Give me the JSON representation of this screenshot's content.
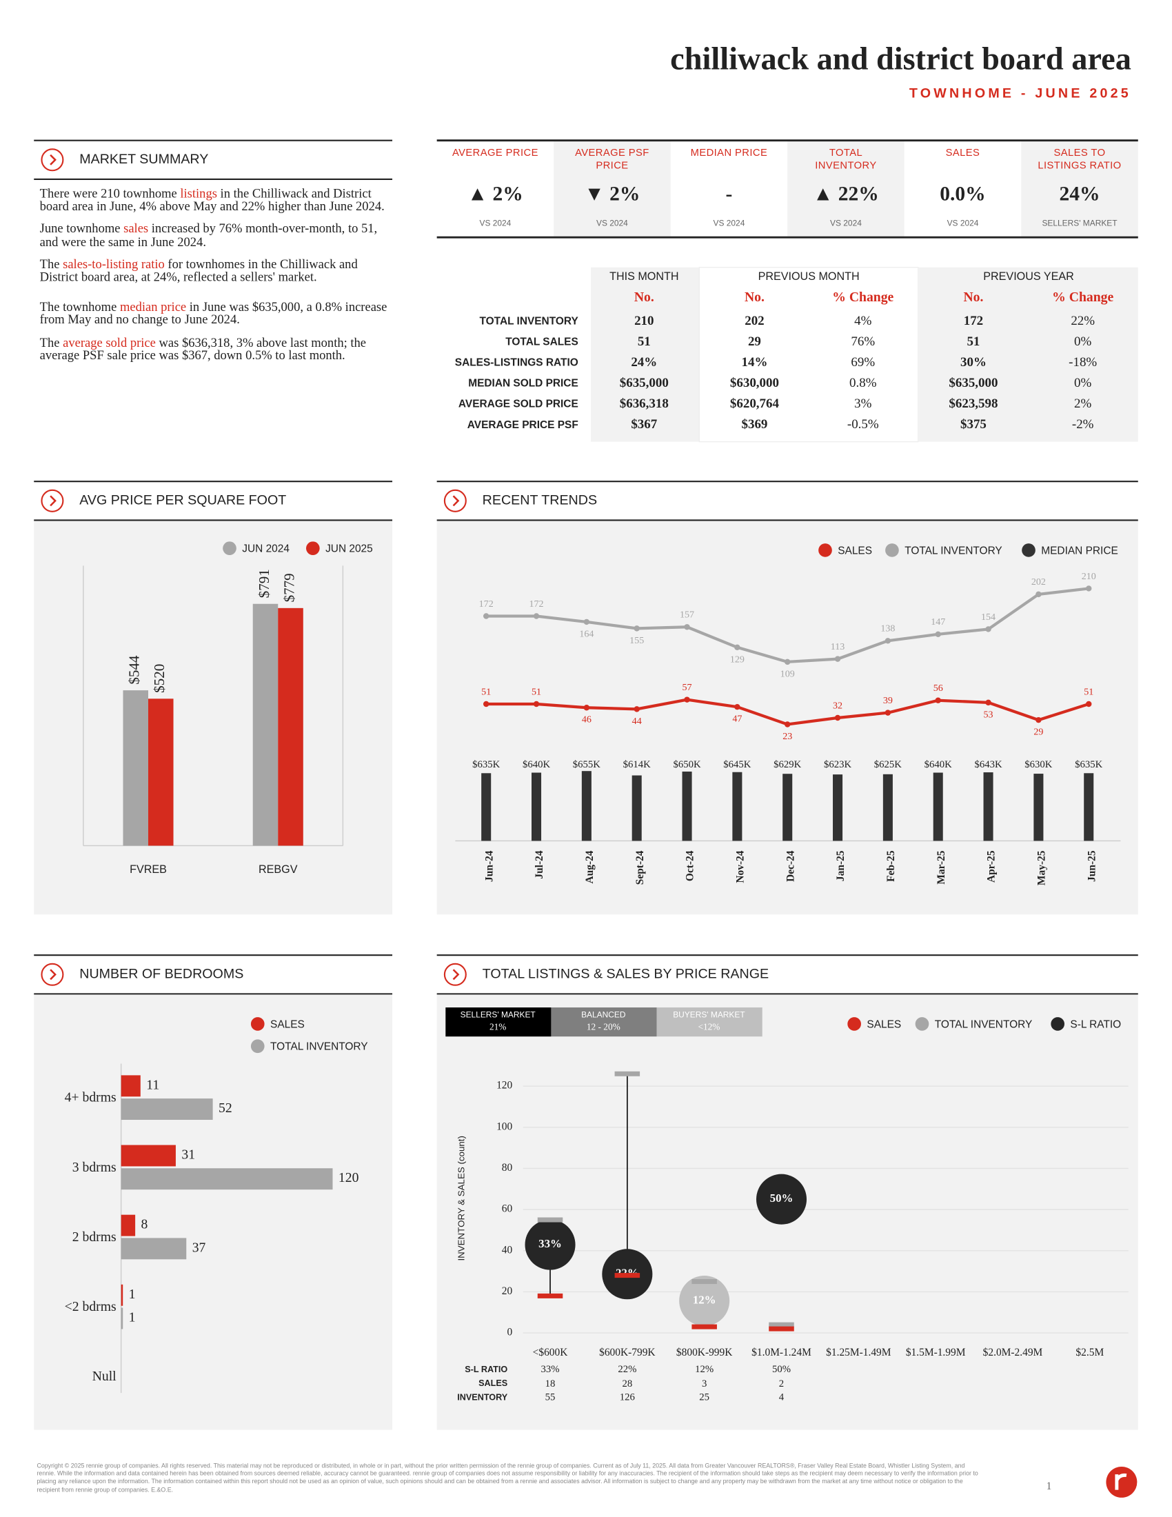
{
  "header": {
    "title": "chilliwack and district board area",
    "subtitle": "TOWNHOME - JUNE 2025"
  },
  "market_summary": {
    "title": "MARKET SUMMARY",
    "paragraphs": [
      [
        {
          "text": "There were 210 townhome "
        },
        {
          "text": "listings",
          "highlight": true
        },
        {
          "text": " in the Chilliwack and District board area in June, 4% above May and 22% higher than June 2024."
        }
      ],
      [
        {
          "text": "June townhome "
        },
        {
          "text": "sales",
          "highlight": true
        },
        {
          "text": " increased by 76% month-over-month, to 51, and were the same in June 2024."
        }
      ],
      [
        {
          "text": "The "
        },
        {
          "text": "sales-to-listing ratio",
          "highlight": true
        },
        {
          "text": " for townhomes in the Chilliwack and District board area, at 24%, reflected a sellers' market."
        }
      ],
      [
        {
          "text": "The townhome "
        },
        {
          "text": "median price",
          "highlight": true
        },
        {
          "text": " in June was $635,000, a 0.8% increase from May and  no change to June 2024."
        }
      ],
      [
        {
          "text": "The "
        },
        {
          "text": "average sold price",
          "highlight": true
        },
        {
          "text": " was $636,318, 3% above last month; the average PSF sale price was $367, down 0.5% to last month."
        }
      ]
    ]
  },
  "kpis": [
    {
      "label": "AVERAGE PRICE",
      "value": "▲ 2%",
      "note": "VS 2024"
    },
    {
      "label": "AVERAGE PSF PRICE",
      "value": "▼ 2%",
      "note": "VS 2024"
    },
    {
      "label": "MEDIAN PRICE",
      "value": "-",
      "note": "VS 2024"
    },
    {
      "label": "TOTAL INVENTORY",
      "value": "▲ 22%",
      "note": "VS 2024"
    },
    {
      "label": "SALES",
      "value": "0.0%",
      "note": "VS 2024"
    },
    {
      "label": "SALES TO LISTINGS RATIO",
      "value": "24%",
      "note": "SELLERS' MARKET"
    }
  ],
  "table": {
    "groups": [
      "THIS MONTH",
      "PREVIOUS MONTH",
      "PREVIOUS YEAR"
    ],
    "columns": [
      "No.",
      "No.",
      "% Change",
      "No.",
      "% Change"
    ],
    "rows": [
      [
        "TOTAL INVENTORY",
        "210",
        "202",
        "4%",
        "172",
        "22%"
      ],
      [
        "TOTAL SALES",
        "51",
        "29",
        "76%",
        "51",
        "0%"
      ],
      [
        "SALES-LISTINGS RATIO",
        "24%",
        "14%",
        "69%",
        "30%",
        "-18%"
      ],
      [
        "MEDIAN SOLD PRICE",
        "$635,000",
        "$630,000",
        "0.8%",
        "$635,000",
        "0%"
      ],
      [
        "AVERAGE SOLD PRICE",
        "$636,318",
        "$620,764",
        "3%",
        "$623,598",
        "2%"
      ],
      [
        "AVERAGE PRICE PSF",
        "$367",
        "$369",
        "-0.5%",
        "$375",
        "-2%"
      ]
    ]
  },
  "charts": [
    {
      "type": "bar",
      "title": "AVG PRICE PER SQUARE FOOT",
      "categories": [
        "FVREB",
        "REBGV"
      ],
      "series": [
        {
          "name": "JUN 2024",
          "color": "#a6a6a6",
          "values": [
            544,
            791
          ],
          "value_labels": [
            "$544",
            "$791"
          ]
        },
        {
          "name": "JUN 2025",
          "color": "#d52b1e",
          "values": [
            520,
            779
          ],
          "value_labels": [
            "$520",
            "$779"
          ]
        }
      ],
      "ylim": [
        100,
        900
      ]
    },
    {
      "type": "line",
      "title": "RECENT TRENDS",
      "categories": [
        "Jun-24",
        "Jul-24",
        "Aug-24",
        "Sept-24",
        "Oct-24",
        "Nov-24",
        "Dec-24",
        "Jan-25",
        "Feb-25",
        "Mar-25",
        "Apr-25",
        "May-25",
        "Jun-25"
      ],
      "series": [
        {
          "name": "SALES",
          "color": "#d52b1e",
          "values": [
            51,
            51,
            46,
            44,
            57,
            47,
            23,
            32,
            39,
            56,
            53,
            29,
            51
          ]
        },
        {
          "name": "TOTAL INVENTORY",
          "color": "#a6a6a6",
          "values": [
            172,
            172,
            164,
            155,
            157,
            129,
            109,
            113,
            138,
            147,
            154,
            202,
            210
          ]
        },
        {
          "name": "MEDIAN PRICE",
          "color": "#333333",
          "type": "bar",
          "axis": "y2",
          "values": [
            635000,
            640000,
            655000,
            614000,
            650000,
            645000,
            629000,
            623000,
            625000,
            640000,
            643000,
            630000,
            635000
          ],
          "value_labels": [
            "$635K",
            "$640K",
            "$655K",
            "$614K",
            "$650K",
            "$645K",
            "$629K",
            "$623K",
            "$625K",
            "$640K",
            "$643K",
            "$630K",
            "$635K"
          ]
        }
      ],
      "ylim": [
        0,
        240
      ],
      "y2lim": [
        0,
        700000
      ]
    },
    {
      "type": "hbar",
      "title": "NUMBER OF BEDROOMS",
      "categories": [
        "4+ bdrms",
        "3 bdrms",
        "2 bdrms",
        "<2 bdrms",
        "Null"
      ],
      "series": [
        {
          "name": "SALES",
          "color": "#d52b1e",
          "values": [
            11,
            31,
            8,
            1,
            null
          ]
        },
        {
          "name": "TOTAL INVENTORY",
          "color": "#a6a6a6",
          "values": [
            52,
            120,
            37,
            1,
            null
          ]
        }
      ],
      "xlim": [
        0,
        150
      ]
    },
    {
      "type": "range",
      "title": "TOTAL LISTINGS & SALES BY PRICE RANGE",
      "y_label": "INVENTORY & SALES (count)",
      "categories": [
        "<$600K",
        "$600K-799K",
        "$800K-999K",
        "$1.0M-1.24M",
        "$1.25M-1.49M",
        "$1.5M-1.99M",
        "$2.0M-2.49M",
        "$2.5M"
      ],
      "series": [
        {
          "name": "SALES",
          "color": "#d52b1e",
          "values": [
            18,
            28,
            3,
            2,
            null,
            null,
            null,
            null
          ]
        },
        {
          "name": "TOTAL INVENTORY",
          "color": "#a6a6a6",
          "values": [
            55,
            126,
            25,
            4,
            null,
            null,
            null,
            null
          ]
        },
        {
          "name": "S-L RATIO",
          "color": "#262626",
          "axis": "y2",
          "values": [
            33,
            22,
            12,
            50,
            null,
            null,
            null,
            null
          ],
          "value_labels": [
            "33%",
            "22%",
            "12%",
            "50%",
            null,
            null,
            null,
            null
          ],
          "colors": [
            "#262626",
            "#262626",
            "#bfbfbf",
            "#262626"
          ]
        }
      ],
      "row_labels": [
        "S-L RATIO",
        "SALES",
        "INVENTORY"
      ],
      "market_bands": [
        {
          "label": "SELLERS' MARKET",
          "range": "21%",
          "color": "#000000"
        },
        {
          "label": "BALANCED",
          "range": "12 - 20%",
          "color": "#7f7f7f"
        },
        {
          "label": "BUYERS' MARKET",
          "range": "<12%",
          "color": "#bfbfbf"
        }
      ],
      "ylim": [
        0,
        130
      ],
      "yticks": [
        0,
        20,
        40,
        60,
        80,
        100,
        120
      ],
      "y2lim": [
        0,
        100
      ],
      "grid": true
    }
  ],
  "footer": {
    "disclaimer": "Copyright © 2025 rennie group of companies. All rights reserved. This material may not be reproduced or distributed, in whole or in part, without the prior written permission of the rennie group of companies. Current as of July 11, 2025. All data from Greater Vancouver REALTORS®, Fraser Valley Real Estate Board, Whistler Listing System, and rennie. While the information and data contained herein has been obtained from sources deemed reliable, accuracy cannot be guaranteed. rennie group of companies does not assume responsibility or liability for any inaccuracies. The recipient of the information should take steps as the recipient may deem necessary to verify the information prior to placing any reliance upon the information. The information contained within this report should not be used as an opinion of value, such opinions should and can be obtained from a rennie and associates advisor. All information is subject to change and any property may be withdrawn from the market at any time without notice or obligation to the recipient from rennie group of companies. E.&O.E.",
    "page": "1"
  }
}
